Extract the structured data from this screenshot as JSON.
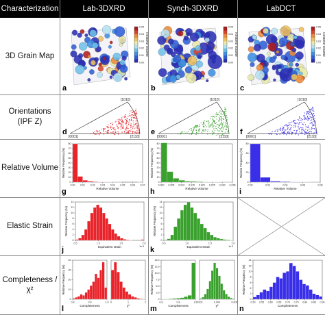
{
  "header": {
    "characterization": "Characterization",
    "col1": "Lab-3DXRD",
    "col2": "Synch-3DXRD",
    "col3": "LabDCT"
  },
  "rows": {
    "grain_map": "3D Grain Map",
    "orientations_l1": "Orientations",
    "orientations_l2": "(IPF Z)",
    "relative_volume": "Relative Volume",
    "elastic_strain": "Elastic Strain",
    "completeness_l1": "Completeness /",
    "completeness_l2": "χ²"
  },
  "panels": {
    "a": "a",
    "b": "b",
    "c": "c",
    "d": "d",
    "e": "e",
    "f": "f",
    "g": "g",
    "h": "h",
    "i": "i",
    "j": "j",
    "k": "k",
    "m": "m",
    "n": "n",
    "l": "l"
  },
  "colors": {
    "lab3dxrd": "#e8232a",
    "synch3dxrd": "#3aa02e",
    "labdct": "#3a2fe8"
  },
  "grain_map": {
    "colorbar_label": "Relative volume",
    "ticks": [
      "0.05",
      "0.04",
      "0.03",
      "0.02",
      "0.01",
      "0.00"
    ],
    "ticks_b": [
      "0.03",
      "0.02",
      "0.01"
    ]
  },
  "ipf": {
    "corner_top": "[1010]",
    "corner_left": "[0001]",
    "corner_right": "[2110]"
  },
  "chart_data": [
    {
      "panel": "g",
      "type": "bar",
      "xlabel": "Relative Volume",
      "ylabel": "Relative Frequency (%)",
      "xticks": [
        "0.00",
        "0.01",
        "0.02",
        "0.03",
        "0.04",
        "0.05",
        "0.06",
        "0.07"
      ],
      "yticks": [
        "0",
        "10",
        "20",
        "30",
        "40",
        "50",
        "60",
        "70",
        "80"
      ],
      "xlim": [
        0,
        0.07
      ],
      "ylim": [
        0,
        80
      ],
      "values": [
        80,
        12,
        4,
        2,
        1,
        0.5,
        0.3,
        0.2,
        0.1,
        0.1,
        0,
        0,
        0,
        0.1
      ]
    },
    {
      "panel": "h",
      "type": "bar",
      "xlabel": "Relative Volume",
      "ylabel": "Relative Frequency (%)",
      "xticks": [
        "0.000",
        "0.005",
        "0.010",
        "0.015",
        "0.020",
        "0.025",
        "0.030",
        "0.035"
      ],
      "yticks": [
        "0",
        "10",
        "20",
        "30",
        "40",
        "50",
        "60",
        "70",
        "80"
      ],
      "xlim": [
        0,
        0.035
      ],
      "ylim": [
        0,
        80
      ],
      "values": [
        82,
        22,
        8,
        4,
        2,
        1.5,
        1,
        0.5,
        0.3,
        0.2,
        0.1,
        0.1
      ]
    },
    {
      "panel": "i",
      "type": "bar",
      "xlabel": "Relative Volume",
      "ylabel": "Relative Frequency (%)",
      "xticks": [
        "0.00",
        "0.02",
        "0.04",
        "0.06",
        "0.08"
      ],
      "yticks": [
        "0",
        "20",
        "40",
        "60",
        "80"
      ],
      "xlim": [
        0,
        0.08
      ],
      "ylim": [
        0,
        80
      ],
      "values": [
        80,
        10,
        2,
        1,
        0.5,
        0.2,
        0.1
      ]
    },
    {
      "panel": "j",
      "type": "bar",
      "xlabel": "Equivalent strain",
      "ylabel": "Relative Frequency (%)",
      "xticks": [
        "0.5",
        "1.0",
        "1.5",
        "2.0"
      ],
      "yticks": [
        "0",
        "2",
        "4",
        "6",
        "8",
        "10",
        "12",
        "14"
      ],
      "xlim": [
        0.2,
        2.2
      ],
      "ylim": [
        0,
        14
      ],
      "offset_text": "1e-3",
      "values": [
        0.3,
        0.8,
        2,
        4,
        7,
        10,
        12,
        13,
        12,
        10,
        8,
        6,
        4,
        2.5,
        1.5,
        0.8,
        0.4,
        0.2,
        0.1,
        0,
        0,
        0,
        0.3
      ]
    },
    {
      "panel": "k",
      "type": "bar",
      "xlabel": "Equivalent strain",
      "ylabel": "Relative Frequency (%)",
      "xticks": [
        "0.5",
        "1.0",
        "1.5",
        "2.0"
      ],
      "yticks": [
        "0",
        "2",
        "4",
        "6",
        "8",
        "10",
        "12",
        "14"
      ],
      "xlim": [
        0.2,
        2.2
      ],
      "ylim": [
        0,
        14
      ],
      "offset_text": "1e-3",
      "values": [
        0.2,
        0.6,
        2,
        5,
        8,
        11,
        13,
        14,
        12,
        10,
        8,
        6,
        4.5,
        3,
        2,
        1.2,
        0.8,
        0.5,
        0.3,
        0.2,
        0.1
      ]
    },
    {
      "panel": "l",
      "type": "bar",
      "xlabel": "Completeness",
      "ylabel": "Relative Frequency (%)",
      "xticks": [
        "0.8",
        "0.9",
        "1.0"
      ],
      "yticks": [
        "0",
        "10",
        "20",
        "30",
        "40"
      ],
      "xlim": [
        0.72,
        1.0
      ],
      "ylim": [
        0,
        40
      ],
      "values": [
        1,
        2,
        3,
        5,
        4,
        7,
        10,
        14,
        18,
        26,
        22,
        30,
        38,
        12
      ]
    },
    {
      "panel": "l2",
      "type": "bar",
      "xlabel": "χ²",
      "ylabel": "",
      "xticks": [
        "0",
        "1",
        "2"
      ],
      "yticks": [],
      "xlim": [
        0,
        2.5
      ],
      "ylim": [
        0,
        40
      ],
      "values": [
        30,
        38,
        28,
        18,
        12,
        8,
        5,
        3,
        2,
        1,
        0.5,
        0.3
      ]
    },
    {
      "panel": "m",
      "type": "bar",
      "xlabel": "Completeness",
      "ylabel": "Relative Frequency (%)",
      "xticks": [
        "0.6",
        "0.8",
        "1.0"
      ],
      "yticks": [
        "0",
        "2.5",
        "5.0",
        "7.5",
        "10.0",
        "12.5",
        "15.0"
      ],
      "xlim": [
        0.5,
        1.02
      ],
      "ylim": [
        0,
        15
      ],
      "values": [
        0.1,
        0.1,
        0.2,
        0.3,
        0.4,
        0.6,
        1,
        1.5,
        14
      ]
    },
    {
      "panel": "m2",
      "type": "bar",
      "xlabel": "χ²",
      "ylabel": "",
      "xticks": [
        "0.002",
        "0.004",
        "0.006"
      ],
      "yticks": [],
      "xlim": [
        0.001,
        0.007
      ],
      "ylim": [
        0,
        15
      ],
      "values": [
        0.3,
        0.8,
        2,
        4,
        7,
        11,
        14,
        12,
        9,
        6,
        3.5,
        2,
        1,
        0.5,
        0.2
      ]
    },
    {
      "panel": "n",
      "type": "bar",
      "xlabel": "Completeness",
      "ylabel": "Relative Frequency (%)",
      "xticks": [
        "0.50",
        "0.55",
        "0.60",
        "0.65",
        "0.70",
        "0.75",
        "0.80",
        "0.85",
        "0.90"
      ],
      "yticks": [
        "0",
        "2",
        "4",
        "6",
        "8",
        "10",
        "12",
        "14"
      ],
      "xlim": [
        0.5,
        0.9
      ],
      "ylim": [
        0,
        14
      ],
      "values": [
        0.8,
        1.5,
        2.5,
        3.5,
        3,
        4.5,
        6,
        8,
        7.5,
        9.5,
        10,
        13,
        12,
        10,
        7,
        5.5,
        5,
        3.5,
        2,
        1.5,
        1
      ]
    }
  ]
}
